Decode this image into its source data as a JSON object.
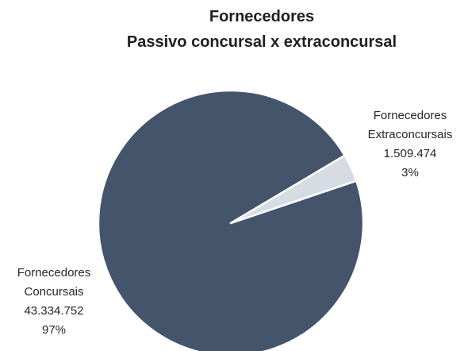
{
  "chart_data": {
    "type": "pie",
    "title": "Fornecedores",
    "subtitle": "Passivo concursal x extraconcursal",
    "categories": [
      "Fornecedores Concursais",
      "Fornecedores Extraconcursais"
    ],
    "values": [
      43334752,
      1509474
    ],
    "value_labels": [
      "43.334.752",
      "1.509.474"
    ],
    "percentages": [
      97,
      3
    ],
    "percentage_labels": [
      "97%",
      "3%"
    ],
    "colors": [
      "#44546a",
      "#d6dce4"
    ]
  }
}
